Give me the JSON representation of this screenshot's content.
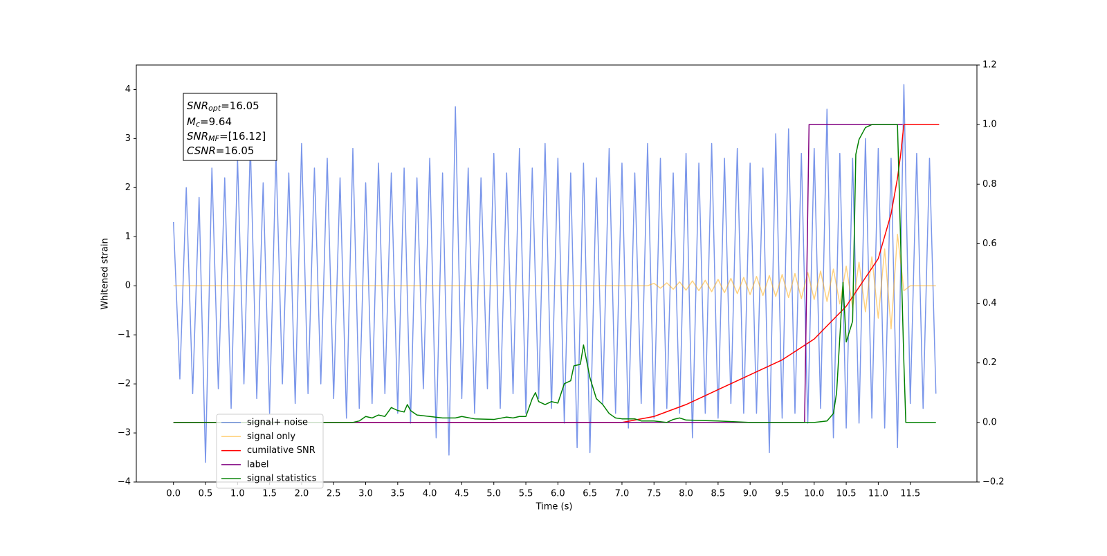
{
  "chart_data": {
    "type": "line",
    "xlabel": "Time (s)",
    "ylabel": "Whitened strain",
    "xlim": [
      -0.58,
      12.54
    ],
    "ylim": [
      -4,
      4.5
    ],
    "y2lim": [
      -0.2,
      1.2
    ],
    "xticks": [
      {
        "value": 0,
        "label": "0.0"
      },
      0.5,
      {
        "value": 1,
        "label": "1.0"
      },
      1.5,
      {
        "value": 2,
        "label": "2.0"
      },
      2.5,
      {
        "value": 3,
        "label": "3.0"
      },
      3.5,
      {
        "value": 4,
        "label": "4.0"
      },
      4.5,
      {
        "value": 5,
        "label": "5.0"
      },
      5.5,
      {
        "value": 6,
        "label": "6.0"
      },
      6.5,
      {
        "value": 7,
        "label": "7.0"
      },
      7.5,
      {
        "value": 8,
        "label": "8.0"
      },
      8.5,
      {
        "value": 9,
        "label": "9.0"
      },
      9.5,
      {
        "value": 10,
        "label": "10.0"
      },
      10.5,
      {
        "value": 11,
        "label": "11.0"
      },
      11.5
    ],
    "yticks": [
      {
        "value": -4,
        "label": "−4"
      },
      {
        "value": -3,
        "label": "−3"
      },
      {
        "value": -2,
        "label": "−2"
      },
      {
        "value": -1,
        "label": "−1"
      },
      0,
      1,
      2,
      3,
      4
    ],
    "y2ticks": [
      {
        "value": -0.2,
        "label": "−0.2"
      },
      {
        "value": 0,
        "label": "0.0"
      },
      0.2,
      0.4,
      0.6,
      0.8,
      {
        "value": 1,
        "label": "1.0"
      },
      1.2
    ],
    "annotation": [
      {
        "name": "SNR",
        "sub": "opt",
        "text": "=16.05"
      },
      {
        "name": "M",
        "sub": "c",
        "text": "=9.64"
      },
      {
        "name": "SNR",
        "sub": "MF",
        "text": "=[16.12]"
      },
      {
        "name": "CSNR",
        "text": "=16.05"
      }
    ],
    "x": [
      0,
      0.1,
      0.2,
      0.3,
      0.4,
      0.5,
      0.6,
      0.7,
      0.8,
      0.9,
      1,
      1.1,
      1.2,
      1.3,
      1.4,
      1.5,
      1.6,
      1.7,
      1.8,
      1.9,
      2,
      2.1,
      2.2,
      2.3,
      2.4,
      2.5,
      2.6,
      2.7,
      2.8,
      2.9,
      3,
      3.1,
      3.2,
      3.3,
      3.4,
      3.5,
      3.6,
      3.7,
      3.8,
      3.9,
      4,
      4.1,
      4.2,
      4.3,
      4.4,
      4.5,
      4.6,
      4.7,
      4.8,
      4.9,
      5,
      5.1,
      5.2,
      5.3,
      5.4,
      5.5,
      5.6,
      5.7,
      5.8,
      5.9,
      6,
      6.1,
      6.2,
      6.3,
      6.4,
      6.5,
      6.6,
      6.7,
      6.8,
      6.9,
      7,
      7.1,
      7.2,
      7.3,
      7.4,
      7.5,
      7.6,
      7.7,
      7.8,
      7.9,
      8,
      8.1,
      8.2,
      8.3,
      8.4,
      8.5,
      8.6,
      8.7,
      8.8,
      8.9,
      9,
      9.1,
      9.2,
      9.3,
      9.4,
      9.5,
      9.6,
      9.7,
      9.8,
      9.9,
      10,
      10.1,
      10.2,
      10.3,
      10.4,
      10.5,
      10.6,
      10.7,
      10.8,
      10.9,
      11,
      11.1,
      11.2,
      11.3,
      11.4,
      11.5,
      11.6,
      11.7,
      11.8,
      11.9
    ],
    "series": [
      {
        "name": "signal+ noise",
        "color": "#4169e1",
        "alpha": 0.7,
        "values": [
          1.3,
          -1.9,
          2.0,
          -2.2,
          1.8,
          -3.6,
          2.4,
          -2.1,
          2.2,
          -2.5,
          2.6,
          -2.0,
          2.9,
          -2.3,
          2.1,
          -2.6,
          2.7,
          -2.0,
          2.3,
          -2.4,
          2.9,
          -2.2,
          2.4,
          -2.0,
          2.6,
          -2.3,
          2.2,
          -2.7,
          2.8,
          -2.5,
          2.1,
          -2.4,
          2.5,
          -2.2,
          2.3,
          -2.6,
          2.4,
          -2.8,
          2.2,
          -2.1,
          2.6,
          -3.1,
          2.3,
          -3.45,
          3.65,
          -2.3,
          2.4,
          -2.6,
          2.2,
          -2.1,
          2.7,
          -2.5,
          2.3,
          -2.2,
          2.8,
          -2.6,
          2.4,
          -2.3,
          2.9,
          -2.5,
          2.6,
          -2.8,
          2.3,
          -3.3,
          2.5,
          -3.4,
          2.2,
          -2.4,
          2.8,
          -2.6,
          2.5,
          -2.9,
          2.3,
          -2.4,
          2.9,
          -2.7,
          2.6,
          -2.5,
          2.3,
          -2.6,
          2.7,
          -3.1,
          2.5,
          -2.6,
          2.9,
          -2.7,
          2.6,
          -2.4,
          2.8,
          -2.6,
          2.5,
          -2.6,
          2.4,
          -3.4,
          3.1,
          -2.7,
          3.2,
          -2.6,
          2.7,
          -2.8,
          2.8,
          -2.5,
          3.6,
          -3.1,
          2.7,
          -2.9,
          2.6,
          -2.8,
          3.0,
          -2.7,
          2.8,
          -2.9,
          2.6,
          -3.3,
          4.1,
          -2.4,
          2.7,
          -2.5,
          2.6,
          -2.2
        ]
      },
      {
        "name": "signal only",
        "color": "#ffa500",
        "alpha": 0.5,
        "values": [
          0,
          0,
          0,
          0,
          0,
          0,
          0,
          0,
          0,
          0,
          0,
          0,
          0,
          0,
          0,
          0,
          0,
          0,
          0,
          0,
          0,
          0,
          0,
          0,
          0,
          0,
          0,
          0,
          0,
          0,
          0,
          0,
          0,
          0,
          0,
          0,
          0,
          0,
          0,
          0,
          0,
          0,
          0,
          0,
          0,
          0,
          0,
          0,
          0,
          0,
          0,
          0,
          0,
          0,
          0,
          0,
          0,
          0,
          0,
          0,
          0,
          0,
          0,
          0,
          0,
          0,
          0,
          0,
          0,
          0,
          0,
          0,
          0,
          0,
          0,
          0.05,
          -0.05,
          0.06,
          -0.07,
          0.08,
          -0.09,
          0.1,
          -0.1,
          0.11,
          -0.12,
          0.13,
          -0.14,
          0.15,
          -0.16,
          0.17,
          -0.18,
          0.19,
          -0.2,
          0.21,
          -0.22,
          0.23,
          -0.24,
          0.25,
          -0.26,
          0.27,
          -0.28,
          0.3,
          -0.32,
          0.34,
          -0.37,
          0.4,
          -0.44,
          0.48,
          -0.53,
          0.59,
          -0.66,
          0.75,
          -0.88,
          1.05,
          -0.1,
          0,
          0,
          0,
          0,
          0
        ]
      },
      {
        "name": "cumilative SNR",
        "color": "#ff0000",
        "axis": "y2",
        "x": [
          0,
          7,
          7.5,
          8,
          8.5,
          9,
          9.5,
          10,
          10.5,
          11,
          11.2,
          11.3,
          11.35,
          11.4,
          11.95
        ],
        "values": [
          0,
          0,
          0.02,
          0.06,
          0.11,
          0.16,
          0.21,
          0.28,
          0.39,
          0.55,
          0.7,
          0.82,
          0.9,
          1,
          1
        ]
      },
      {
        "name": "label",
        "color": "#800080",
        "axis": "y2",
        "x": [
          0,
          9.85,
          9.92,
          11.38
        ],
        "values": [
          0,
          0,
          1,
          1
        ]
      },
      {
        "name": "signal statistics",
        "color": "#008000",
        "axis": "y2",
        "x": [
          0,
          2.8,
          2.9,
          3,
          3.1,
          3.2,
          3.3,
          3.4,
          3.5,
          3.6,
          3.65,
          3.7,
          3.8,
          4,
          4.2,
          4.4,
          4.5,
          4.7,
          5,
          5.2,
          5.3,
          5.4,
          5.5,
          5.6,
          5.65,
          5.7,
          5.8,
          5.9,
          6,
          6.1,
          6.2,
          6.25,
          6.35,
          6.4,
          6.5,
          6.6,
          6.7,
          6.8,
          6.9,
          7,
          7.2,
          7.3,
          7.5,
          7.7,
          7.8,
          7.9,
          8,
          8.5,
          9,
          10,
          10.2,
          10.3,
          10.35,
          10.45,
          10.5,
          10.6,
          10.65,
          10.7,
          10.8,
          10.9,
          11.3,
          11.4,
          11.43,
          11.9
        ],
        "values": [
          0,
          0,
          0.005,
          0.02,
          0.015,
          0.025,
          0.02,
          0.05,
          0.04,
          0.035,
          0.06,
          0.04,
          0.025,
          0.02,
          0.015,
          0.015,
          0.02,
          0.012,
          0.01,
          0.018,
          0.015,
          0.02,
          0.02,
          0.08,
          0.1,
          0.07,
          0.06,
          0.07,
          0.065,
          0.13,
          0.14,
          0.19,
          0.195,
          0.26,
          0.15,
          0.08,
          0.06,
          0.03,
          0.015,
          0.012,
          0.012,
          0.005,
          0.005,
          0,
          0.01,
          0.015,
          0.008,
          0.005,
          0,
          0,
          0.005,
          0.03,
          0.1,
          0.47,
          0.27,
          0.34,
          0.9,
          0.95,
          0.99,
          1,
          1,
          0.2,
          0,
          0
        ]
      }
    ]
  }
}
